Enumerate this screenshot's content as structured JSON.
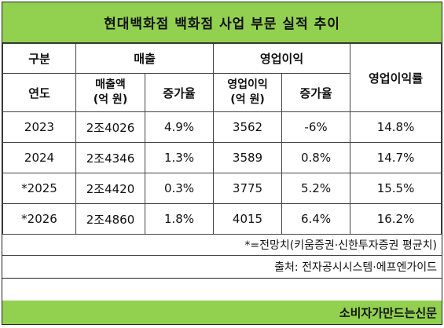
{
  "title": "현대백화점 백화점 사업 부문 실적 추이",
  "headers": {
    "category": "구분",
    "sales": "매출",
    "op_profit": "영업이익",
    "op_margin": "영업이익률",
    "year": "연도",
    "sales_amount_line1": "매출액",
    "sales_amount_line2": "(억 원)",
    "growth": "증가율",
    "op_profit_amount_line1": "영업이익",
    "op_profit_amount_line2": "(억 원)",
    "op_growth": "증가율"
  },
  "rows": [
    {
      "year": "2023",
      "sales": "2조4026",
      "sales_growth": "4.9%",
      "op_profit": "3562",
      "op_growth": "-6%",
      "margin": "14.8%"
    },
    {
      "year": "2024",
      "sales": "2조4346",
      "sales_growth": "1.3%",
      "op_profit": "3589",
      "op_growth": "0.8%",
      "margin": "14.7%"
    },
    {
      "year": "*2025",
      "sales": "2조4420",
      "sales_growth": "0.3%",
      "op_profit": "3775",
      "op_growth": "5.2%",
      "margin": "15.5%"
    },
    {
      "year": "*2026",
      "sales": "2조4860",
      "sales_growth": "1.8%",
      "op_profit": "4015",
      "op_growth": "6.4%",
      "margin": "16.2%"
    }
  ],
  "note": "*=전망치(키움증권·신한투자증권 평균치)",
  "source": "출처: 전자공시시스템·에프엔가이드",
  "footer": "소비자가만드는신문",
  "colors": {
    "header_green": "#92d050",
    "border": "#444444"
  }
}
